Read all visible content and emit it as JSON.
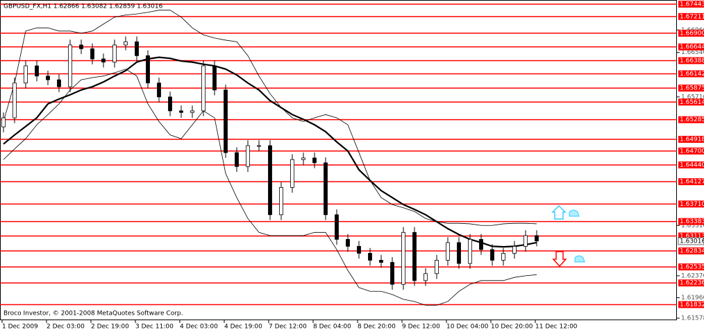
{
  "chart_data": {
    "type": "candlestick",
    "title": "GBPUSD_FX,H1  1.62866 1.63082 1.62859 1.63016",
    "credit": "Broco Investor, © 2001-2008 MetaQuotes Software Corp.",
    "categories": [
      "1 Dec 2009",
      null,
      null,
      null,
      "2 Dec 03:00",
      null,
      null,
      null,
      "2 Dec 19:00",
      null,
      null,
      null,
      "3 Dec 11:00",
      null,
      null,
      null,
      "4 Dec 03:00",
      null,
      null,
      null,
      "4 Dec 19:00",
      null,
      null,
      null,
      "7 Dec 12:00",
      null,
      null,
      null,
      "8 Dec 04:00",
      null,
      null,
      null,
      "8 Dec 20:00",
      null,
      null,
      null,
      "9 Dec 12:00",
      null,
      null,
      null,
      "10 Dec 04:00",
      null,
      null,
      null,
      "10 Dec 20:00",
      null,
      null,
      null,
      "11 Dec 12:00"
    ],
    "open": [
      1.6515,
      1.6532,
      1.6597,
      1.6629,
      1.661,
      1.6603,
      1.659,
      1.6668,
      1.6661,
      1.6642,
      1.6636,
      1.6668,
      1.6674,
      1.6648,
      1.6597,
      1.6571,
      1.6545,
      1.6542,
      1.6545,
      1.6629,
      1.6584,
      1.6467,
      1.6441,
      1.648,
      1.648,
      1.6351,
      1.6402,
      1.6454,
      1.6457,
      1.6448,
      1.6351,
      1.6305,
      1.6292,
      1.6279,
      1.6266,
      1.6262,
      1.6221,
      1.6318,
      1.6228,
      1.6241,
      1.6266,
      1.6299,
      1.626,
      1.6305,
      1.6286,
      1.6266,
      1.6279,
      1.6292,
      1.6312
    ],
    "high": [
      1.6542,
      1.6607,
      1.6639,
      1.6639,
      1.662,
      1.6613,
      1.6678,
      1.6678,
      1.6671,
      1.6652,
      1.6678,
      1.6684,
      1.6684,
      1.6658,
      1.6607,
      1.6581,
      1.6555,
      1.6555,
      1.6639,
      1.6639,
      1.6594,
      1.6477,
      1.649,
      1.649,
      1.649,
      1.6412,
      1.6464,
      1.6467,
      1.6467,
      1.6458,
      1.6361,
      1.6315,
      1.6302,
      1.6289,
      1.6276,
      1.6272,
      1.6328,
      1.6328,
      1.6251,
      1.6276,
      1.6309,
      1.6309,
      1.6315,
      1.6315,
      1.6296,
      1.6289,
      1.6302,
      1.6322,
      1.6322
    ],
    "low": [
      1.6505,
      1.6522,
      1.6587,
      1.66,
      1.6593,
      1.658,
      1.658,
      1.6651,
      1.6632,
      1.6626,
      1.6626,
      1.6658,
      1.6638,
      1.6587,
      1.6561,
      1.6535,
      1.6532,
      1.6532,
      1.6535,
      1.6574,
      1.6457,
      1.6431,
      1.6431,
      1.647,
      1.6341,
      1.6341,
      1.6392,
      1.6444,
      1.6438,
      1.6341,
      1.6295,
      1.6282,
      1.6269,
      1.6256,
      1.6252,
      1.6211,
      1.6211,
      1.6218,
      1.6218,
      1.6231,
      1.6256,
      1.625,
      1.625,
      1.6276,
      1.6256,
      1.6256,
      1.6269,
      1.6282,
      1.6292
    ],
    "close": [
      1.6532,
      1.6597,
      1.6629,
      1.661,
      1.6603,
      1.659,
      1.6668,
      1.6661,
      1.6642,
      1.6636,
      1.6668,
      1.6674,
      1.6648,
      1.6597,
      1.6571,
      1.6545,
      1.6542,
      1.6545,
      1.6629,
      1.6584,
      1.6467,
      1.6441,
      1.648,
      1.648,
      1.6351,
      1.6402,
      1.6454,
      1.6457,
      1.6448,
      1.6351,
      1.6305,
      1.6292,
      1.6279,
      1.6266,
      1.6262,
      1.6221,
      1.6318,
      1.6228,
      1.6241,
      1.6266,
      1.6299,
      1.626,
      1.6305,
      1.6286,
      1.6266,
      1.6279,
      1.6292,
      1.6312,
      1.6302
    ],
    "up_color": "#ffffff",
    "down_color": "#000000",
    "overlays": [
      {
        "color": "#000000",
        "width": 2.2,
        "values": [
          1.6483,
          1.65,
          1.6516,
          1.6532,
          1.6558,
          1.6567,
          1.6575,
          1.6584,
          1.659,
          1.6599,
          1.661,
          1.662,
          1.6636,
          1.6642,
          1.6645,
          1.6643,
          1.6638,
          1.6636,
          1.6632,
          1.6629,
          1.6623,
          1.6612,
          1.6597,
          1.6584,
          1.6564,
          1.6551,
          1.6538,
          1.6529,
          1.6519,
          1.6506,
          1.6487,
          1.647,
          1.6435,
          1.6415,
          1.6396,
          1.6383,
          1.637,
          1.6361,
          1.6351,
          1.6338,
          1.6325,
          1.6314,
          1.6305,
          1.6299,
          1.6292,
          1.6291,
          1.6292,
          1.6295,
          1.6299
        ]
      },
      {
        "color": "#000000",
        "width": 0.8,
        "values": [
          1.6525,
          1.6597,
          1.6694,
          1.67,
          1.67,
          1.6694,
          1.6694,
          1.669,
          1.6694,
          1.6707,
          1.672,
          1.6724,
          1.6726,
          1.6729,
          1.6733,
          1.6733,
          1.672,
          1.67,
          1.6687,
          1.6681,
          1.6677,
          1.6674,
          1.6648,
          1.661,
          1.6577,
          1.6551,
          1.6532,
          1.6525,
          1.6532,
          1.6538,
          1.6532,
          1.6519,
          1.6467,
          1.6415,
          1.6383,
          1.637,
          1.6364,
          1.6357,
          1.6344,
          1.6338,
          1.6335,
          1.6335,
          1.6334,
          1.6331,
          1.6331,
          1.6334,
          1.6335,
          1.6335,
          1.6334
        ]
      },
      {
        "color": "#000000",
        "width": 0.8,
        "values": [
          1.6454,
          1.6474,
          1.6493,
          1.6519,
          1.6538,
          1.6558,
          1.6584,
          1.6603,
          1.6607,
          1.661,
          1.6616,
          1.6623,
          1.661,
          1.6558,
          1.6525,
          1.65,
          1.6493,
          1.6519,
          1.6545,
          1.6532,
          1.6428,
          1.6383,
          1.6344,
          1.6318,
          1.6312,
          1.6312,
          1.6312,
          1.6312,
          1.6318,
          1.6318,
          1.6286,
          1.6247,
          1.6215,
          1.6208,
          1.6208,
          1.6202,
          1.6193,
          1.6189,
          1.6182,
          1.6182,
          1.6189,
          1.6208,
          1.6221,
          1.6228,
          1.6228,
          1.6228,
          1.6234,
          1.6237,
          1.6239
        ]
      }
    ],
    "levels": [
      {
        "value": 1.67443,
        "label": "1.67443"
      },
      {
        "value": 1.67211,
        "label": "1.67211"
      },
      {
        "value": 1.669,
        "label": "1.66900"
      },
      {
        "value": 1.66644,
        "label": "1.66644"
      },
      {
        "value": 1.66388,
        "label": "1.66388"
      },
      {
        "value": 1.66142,
        "label": "1.66142"
      },
      {
        "value": 1.65875,
        "label": "1.65875"
      },
      {
        "value": 1.65614,
        "label": "1.65614"
      },
      {
        "value": 1.65285,
        "label": "1.65285"
      },
      {
        "value": 1.64918,
        "label": "1.64918"
      },
      {
        "value": 1.647,
        "label": "1.64700"
      },
      {
        "value": 1.6444,
        "label": "1.64440"
      },
      {
        "value": 1.64127,
        "label": "1.64127"
      },
      {
        "value": 1.6371,
        "label": "1.63710"
      },
      {
        "value": 1.63383,
        "label": "1.63383"
      },
      {
        "value": 1.63113,
        "label": "1.63113"
      },
      {
        "value": 1.62834,
        "label": "1.62834"
      },
      {
        "value": 1.62535,
        "label": "1.62535"
      },
      {
        "value": 1.62236,
        "label": "1.62236"
      },
      {
        "value": 1.61832,
        "label": "1.61832"
      }
    ],
    "level_color": "#ff0000",
    "last_price": {
      "value": 1.63016,
      "label": "1.63016"
    },
    "ylim": [
      1.6154,
      1.6752
    ],
    "yticks": [
      {
        "value": 1.6696,
        "label": "1.66960"
      },
      {
        "value": 1.6654,
        "label": "1.66540"
      },
      {
        "value": 1.6571,
        "label": "1.65710"
      },
      {
        "value": 1.6331,
        "label": "1.63310"
      },
      {
        "value": 1.6237,
        "label": "1.62370"
      },
      {
        "value": 1.6196,
        "label": "1.61960"
      },
      {
        "value": 1.61578,
        "label": "1.61578"
      }
    ]
  }
}
